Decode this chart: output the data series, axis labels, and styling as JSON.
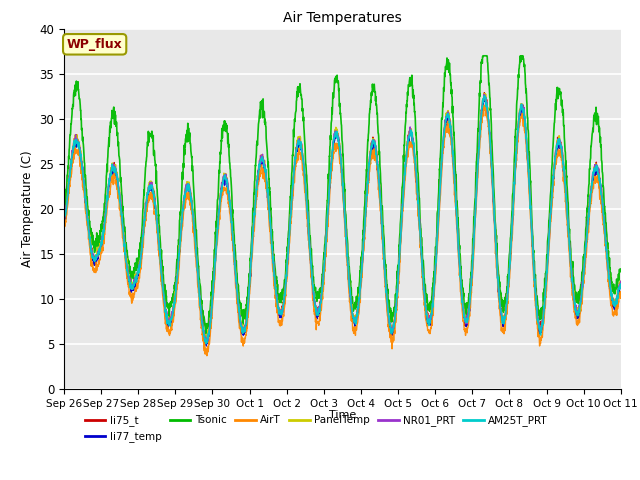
{
  "title": "Air Temperatures",
  "ylabel": "Air Temperature (C)",
  "xlabel": "Time",
  "ylim": [
    0,
    40
  ],
  "background_color": "#e8e8e8",
  "annotation_text": "WP_flux",
  "annotation_color": "#8b0000",
  "annotation_bg": "#ffffcc",
  "series": [
    {
      "name": "li75_t",
      "color": "#cc0000",
      "lw": 1.0
    },
    {
      "name": "li77_temp",
      "color": "#0000cc",
      "lw": 1.0
    },
    {
      "name": "Tsonic",
      "color": "#00bb00",
      "lw": 1.2
    },
    {
      "name": "AirT",
      "color": "#ff8800",
      "lw": 1.0
    },
    {
      "name": "PanelTemp",
      "color": "#cccc00",
      "lw": 1.0
    },
    {
      "name": "NR01_PRT",
      "color": "#9933cc",
      "lw": 1.0
    },
    {
      "name": "AM25T_PRT",
      "color": "#00cccc",
      "lw": 1.2
    }
  ],
  "xtick_labels": [
    "Sep 26",
    "Sep 27",
    "Sep 28",
    "Sep 29",
    "Sep 30",
    "Oct 1",
    "Oct 2",
    "Oct 3",
    "Oct 4",
    "Oct 5",
    "Oct 6",
    "Oct 7",
    "Oct 8",
    "Oct 9",
    "Oct 10",
    "Oct 11"
  ],
  "n_days": 15,
  "pts_per_day": 144,
  "legend_order": [
    "li75_t",
    "li77_temp",
    "Tsonic",
    "AirT",
    "PanelTemp",
    "NR01_PRT",
    "AM25T_PRT"
  ]
}
